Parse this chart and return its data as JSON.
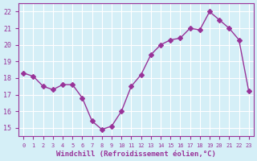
{
  "x": [
    0,
    1,
    2,
    3,
    4,
    5,
    6,
    7,
    8,
    9,
    10,
    11,
    12,
    13,
    14,
    15,
    16,
    17,
    18,
    19,
    20,
    21,
    22,
    23
  ],
  "y": [
    18.3,
    18.1,
    17.5,
    17.3,
    17.6,
    17.6,
    16.8,
    15.4,
    14.9,
    15.1,
    16.0,
    17.5,
    18.2,
    19.4,
    20.0,
    20.3,
    20.4,
    21.0,
    20.9,
    22.0,
    21.5,
    21.0,
    20.3,
    17.2
  ],
  "line_color": "#993399",
  "marker": "D",
  "marker_size": 3,
  "bg_color": "#d5eff7",
  "grid_color": "#ffffff",
  "xlabel": "Windchill (Refroidissement éolien,°C)",
  "xlim": [
    -0.5,
    23.5
  ],
  "ylim": [
    14.5,
    22.5
  ],
  "xticks": [
    0,
    1,
    2,
    3,
    4,
    5,
    6,
    7,
    8,
    9,
    10,
    11,
    12,
    13,
    14,
    15,
    16,
    17,
    18,
    19,
    20,
    21,
    22,
    23
  ],
  "yticks": [
    15,
    16,
    17,
    18,
    19,
    20,
    21,
    22
  ],
  "tick_color": "#993399",
  "label_color": "#993399"
}
